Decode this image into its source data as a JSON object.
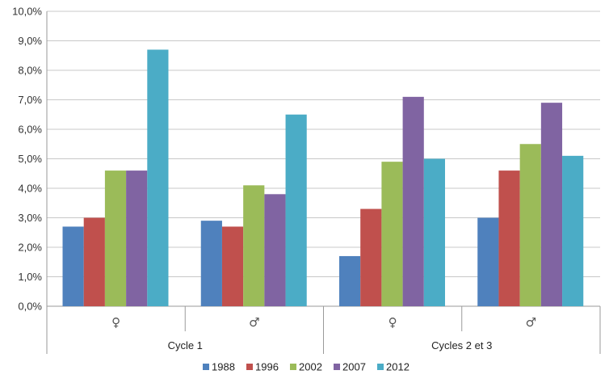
{
  "chart_data": {
    "type": "bar",
    "title": "",
    "xlabel": "",
    "ylabel": "",
    "ylim": [
      0,
      10
    ],
    "y_tick_labels": [
      "0,0%",
      "1,0%",
      "2,0%",
      "3,0%",
      "4,0%",
      "5,0%",
      "6,0%",
      "7,0%",
      "8,0%",
      "9,0%",
      "10,0%"
    ],
    "categories": [
      "♀",
      "♂",
      "♀",
      "♂"
    ],
    "groups": [
      {
        "label": "Cycle 1",
        "categories": [
          "♀",
          "♂"
        ]
      },
      {
        "label": "Cycles 2 et 3",
        "categories": [
          "♀",
          "♂"
        ]
      }
    ],
    "series": [
      {
        "name": "1988",
        "color": "#4f81bd",
        "values": [
          2.7,
          2.9,
          1.7,
          3.0
        ]
      },
      {
        "name": "1996",
        "color": "#c0504d",
        "values": [
          3.0,
          2.7,
          3.3,
          4.6
        ]
      },
      {
        "name": "2002",
        "color": "#9bbb59",
        "values": [
          4.6,
          4.1,
          4.9,
          5.5
        ]
      },
      {
        "name": "2007",
        "color": "#8064a2",
        "values": [
          4.6,
          3.8,
          7.1,
          6.9
        ]
      },
      {
        "name": "2012",
        "color": "#4bacc6",
        "values": [
          8.7,
          6.5,
          5.0,
          5.1
        ]
      }
    ],
    "grid": true,
    "legend_position": "bottom"
  }
}
